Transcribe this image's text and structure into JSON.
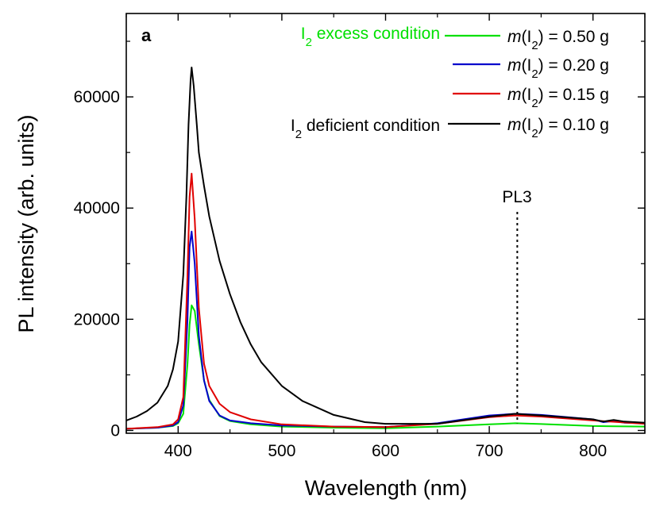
{
  "chart_data": {
    "type": "line",
    "panel_label": "a",
    "xlabel": "Wavelength (nm)",
    "ylabel": "PL intensity (arb. units)",
    "xlim": [
      350,
      850
    ],
    "ylim": [
      -500,
      75000
    ],
    "x_ticks": [
      400,
      500,
      600,
      700,
      800
    ],
    "y_ticks": [
      0,
      20000,
      40000,
      60000
    ],
    "x_tick_labels": [
      "400",
      "500",
      "600",
      "700",
      "800"
    ],
    "y_tick_labels": [
      "0",
      "20000",
      "40000",
      "60000"
    ],
    "legend_position": "top-right",
    "grid": false,
    "series": [
      {
        "name": "m(I2) = 0.50 g",
        "color": "#00e000",
        "x": [
          350,
          380,
          395,
          400,
          405,
          409,
          411,
          413,
          416,
          420,
          425,
          430,
          440,
          450,
          470,
          500,
          550,
          600,
          650,
          700,
          725,
          750,
          800,
          850
        ],
        "y": [
          300,
          500,
          800,
          1300,
          3000,
          12000,
          19000,
          22500,
          21500,
          15500,
          9000,
          5500,
          2600,
          1700,
          1100,
          700,
          500,
          400,
          700,
          1100,
          1300,
          1150,
          800,
          700
        ]
      },
      {
        "name": "m(I2) = 0.20 g",
        "color": "#0000cc",
        "x": [
          350,
          380,
          395,
          400,
          405,
          409,
          411,
          413,
          416,
          420,
          425,
          430,
          440,
          450,
          470,
          500,
          550,
          600,
          650,
          700,
          725,
          750,
          800,
          810,
          820,
          830,
          850
        ],
        "y": [
          300,
          500,
          900,
          1500,
          4500,
          20000,
          33000,
          35800,
          30000,
          17000,
          9000,
          5300,
          2700,
          1800,
          1300,
          900,
          700,
          600,
          1300,
          2700,
          3000,
          2800,
          2000,
          1500,
          1700,
          1400,
          1300
        ]
      },
      {
        "name": "m(I2) = 0.15 g",
        "color": "#e00000",
        "x": [
          350,
          380,
          395,
          400,
          405,
          409,
          411,
          413,
          416,
          420,
          425,
          430,
          440,
          450,
          470,
          500,
          550,
          600,
          650,
          700,
          725,
          750,
          800,
          850
        ],
        "y": [
          300,
          600,
          1100,
          2000,
          6000,
          28000,
          42000,
          46200,
          38000,
          22000,
          12000,
          8000,
          4800,
          3300,
          2000,
          1100,
          700,
          600,
          1200,
          2400,
          2700,
          2500,
          1800,
          1200
        ]
      },
      {
        "name": "m(I2) = 0.10 g",
        "color": "#000000",
        "x": [
          350,
          360,
          370,
          380,
          390,
          395,
          400,
          405,
          408,
          410,
          412,
          413,
          415,
          418,
          420,
          425,
          430,
          440,
          450,
          460,
          470,
          480,
          500,
          520,
          550,
          580,
          600,
          650,
          700,
          725,
          750,
          800,
          810,
          820,
          830,
          850
        ],
        "y": [
          1800,
          2500,
          3500,
          5000,
          8000,
          11000,
          16000,
          28000,
          42000,
          55000,
          63000,
          65300,
          62000,
          55000,
          50000,
          44000,
          38500,
          30500,
          24500,
          19500,
          15500,
          12300,
          8000,
          5300,
          2800,
          1500,
          1200,
          1200,
          2500,
          3000,
          2700,
          2000,
          1600,
          1900,
          1600,
          1400
        ]
      }
    ],
    "annotations": [
      {
        "text": "I2 excess condition",
        "color": "#00e000",
        "target_series": "m(I2) = 0.50 g"
      },
      {
        "text": "I2 deficient condition",
        "color": "#000000",
        "target_series": "m(I2) = 0.10 g"
      },
      {
        "text": "PL3",
        "x": 727,
        "style": "dotted-vertical"
      }
    ]
  }
}
